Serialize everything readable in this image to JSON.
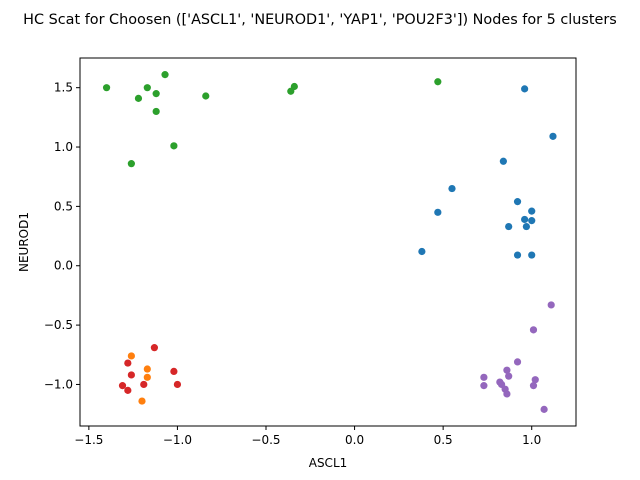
{
  "chart_data": {
    "type": "scatter",
    "title": "HC Scat for Choosen (['ASCL1', 'NEUROD1', 'YAP1', 'POU2F3']) Nodes for 5 clusters",
    "xlabel": "ASCL1",
    "ylabel": "NEUROD1",
    "xlim": [
      -1.55,
      1.25
    ],
    "ylim": [
      -1.35,
      1.75
    ],
    "xticks": [
      -1.5,
      -1.0,
      -0.5,
      0.0,
      0.5,
      1.0
    ],
    "xtick_labels": [
      "−1.5",
      "−1.0",
      "−0.5",
      "0.0",
      "0.5",
      "1.0"
    ],
    "yticks": [
      -1.0,
      -0.5,
      0.0,
      0.5,
      1.0,
      1.5
    ],
    "ytick_labels": [
      "−1.0",
      "−0.5",
      "0.0",
      "0.5",
      "1.0",
      "1.5"
    ],
    "grid": false,
    "series": [
      {
        "color": "#1f77b4",
        "points": [
          [
            0.96,
            1.49
          ],
          [
            1.12,
            1.09
          ],
          [
            0.84,
            0.88
          ],
          [
            0.55,
            0.65
          ],
          [
            0.92,
            0.54
          ],
          [
            0.47,
            0.45
          ],
          [
            1.0,
            0.46
          ],
          [
            0.96,
            0.39
          ],
          [
            1.0,
            0.38
          ],
          [
            0.87,
            0.33
          ],
          [
            0.97,
            0.33
          ],
          [
            0.38,
            0.12
          ],
          [
            0.92,
            0.09
          ],
          [
            1.0,
            0.09
          ]
        ]
      },
      {
        "color": "#ff7f0e",
        "points": [
          [
            -1.26,
            -0.76
          ],
          [
            -1.17,
            -0.87
          ],
          [
            -1.17,
            -0.94
          ],
          [
            -1.2,
            -1.14
          ]
        ]
      },
      {
        "color": "#2ca02c",
        "points": [
          [
            -1.4,
            1.5
          ],
          [
            -1.07,
            1.61
          ],
          [
            -1.17,
            1.5
          ],
          [
            -1.22,
            1.41
          ],
          [
            -1.12,
            1.45
          ],
          [
            -0.84,
            1.43
          ],
          [
            -1.12,
            1.3
          ],
          [
            -0.34,
            1.51
          ],
          [
            -0.36,
            1.47
          ],
          [
            0.47,
            1.55
          ],
          [
            -1.02,
            1.01
          ],
          [
            -1.26,
            0.86
          ]
        ]
      },
      {
        "color": "#d62728",
        "points": [
          [
            -1.13,
            -0.69
          ],
          [
            -1.28,
            -0.82
          ],
          [
            -1.02,
            -0.89
          ],
          [
            -1.26,
            -0.92
          ],
          [
            -1.31,
            -1.01
          ],
          [
            -1.19,
            -1.0
          ],
          [
            -1.0,
            -1.0
          ],
          [
            -1.28,
            -1.05
          ]
        ]
      },
      {
        "color": "#9467bd",
        "points": [
          [
            1.11,
            -0.33
          ],
          [
            1.01,
            -0.54
          ],
          [
            0.92,
            -0.81
          ],
          [
            0.86,
            -0.88
          ],
          [
            0.73,
            -0.94
          ],
          [
            0.87,
            -0.93
          ],
          [
            1.02,
            -0.96
          ],
          [
            0.82,
            -0.98
          ],
          [
            0.83,
            -1.0
          ],
          [
            0.73,
            -1.01
          ],
          [
            1.01,
            -1.01
          ],
          [
            0.85,
            -1.04
          ],
          [
            0.86,
            -1.08
          ],
          [
            1.07,
            -1.21
          ]
        ]
      }
    ]
  }
}
